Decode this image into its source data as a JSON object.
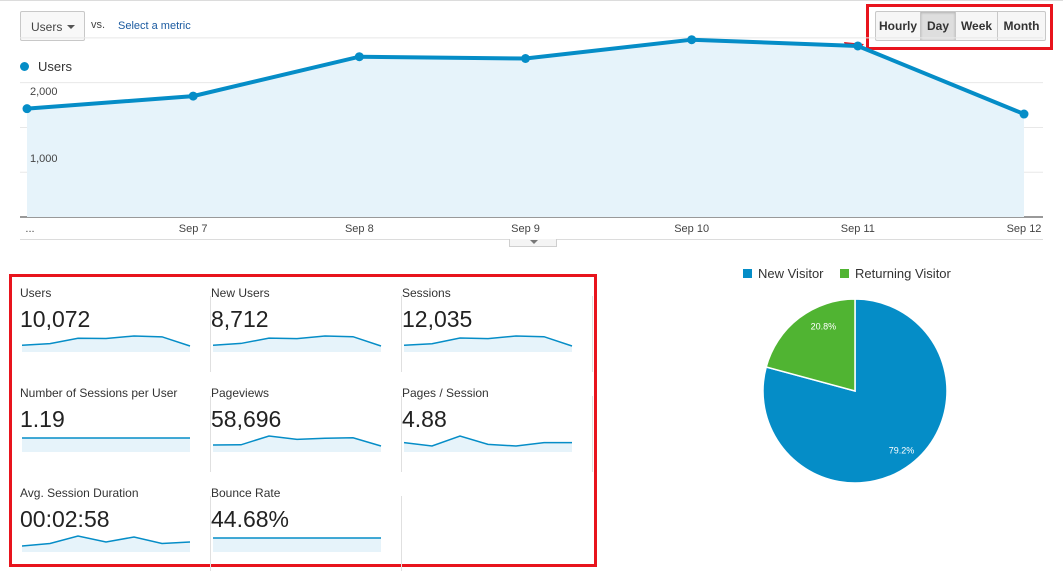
{
  "toolbar": {
    "metric_select": "Users",
    "vs": "vs.",
    "select_metric_link": "Select a metric",
    "granularity": [
      "Hourly",
      "Day",
      "Week",
      "Month"
    ],
    "granularity_active": "Day"
  },
  "chart_data": [
    {
      "type": "area",
      "series": [
        {
          "name": "Users",
          "values": [
            1210,
            1350,
            1790,
            1770,
            1980,
            1910,
            1150
          ]
        }
      ],
      "categories": [
        "...",
        "Sep 7",
        "Sep 8",
        "Sep 9",
        "Sep 10",
        "Sep 11",
        "Sep 12"
      ],
      "y_ticks": [
        "2,000",
        "1,000"
      ],
      "ylim": [
        0,
        2200
      ],
      "color": "#058dc7",
      "fill": "#e6f3fa",
      "grid": true,
      "legend": "top-left"
    },
    {
      "type": "pie",
      "categories": [
        "New Visitor",
        "Returning Visitor"
      ],
      "values": [
        79.2,
        20.8
      ],
      "labels": [
        "79.2%",
        "20.8%"
      ],
      "colors": [
        "#058dc7",
        "#50b432"
      ],
      "legend": "top"
    }
  ],
  "metrics": [
    {
      "title": "Users",
      "value": "10,072",
      "spark": [
        1210,
        1350,
        1790,
        1770,
        1980,
        1910,
        1150
      ]
    },
    {
      "title": "New Users",
      "value": "8,712",
      "spark": [
        1050,
        1180,
        1550,
        1520,
        1700,
        1650,
        1000
      ]
    },
    {
      "title": "Sessions",
      "value": "12,035",
      "spark": [
        1450,
        1600,
        2150,
        2100,
        2350,
        2280,
        1380
      ]
    },
    {
      "title": "Number of Sessions per User",
      "value": "1.19",
      "spark": [
        1.19,
        1.19,
        1.2,
        1.19,
        1.19,
        1.19,
        1.19
      ]
    },
    {
      "title": "Pageviews",
      "value": "58,696",
      "spark": [
        7000,
        7100,
        11500,
        9800,
        10400,
        10600,
        6500
      ]
    },
    {
      "title": "Pages / Session",
      "value": "4.88",
      "spark": [
        4.8,
        4.6,
        5.2,
        4.7,
        4.6,
        4.8,
        4.8
      ]
    },
    {
      "title": "Avg. Session Duration",
      "value": "00:02:58",
      "spark": [
        170,
        175,
        190,
        178,
        188,
        175,
        178
      ]
    },
    {
      "title": "Bounce Rate",
      "value": "44.68%",
      "spark": [
        44.0,
        44.8,
        45.0,
        44.6,
        44.7,
        44.7,
        45.8
      ]
    }
  ],
  "annotations": {
    "highlight_color": "#e8141d"
  }
}
